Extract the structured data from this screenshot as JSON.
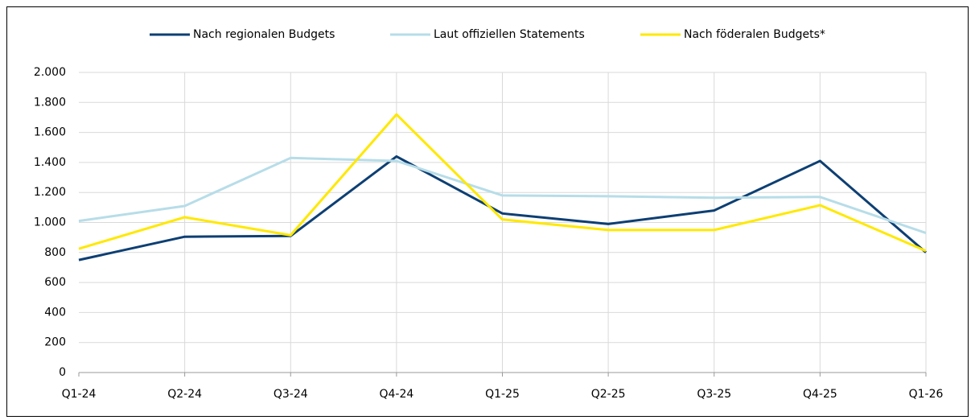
{
  "chart_data": {
    "type": "line",
    "categories": [
      "Q1-24",
      "Q2-24",
      "Q3-24",
      "Q4-24",
      "Q1-25",
      "Q2-25",
      "Q3-25",
      "Q4-25",
      "Q1-26"
    ],
    "series": [
      {
        "name": "Nach regionalen Budgets",
        "color": "#0d3f73",
        "values": [
          750,
          905,
          910,
          1440,
          1060,
          990,
          1080,
          1410,
          800
        ]
      },
      {
        "name": "Laut offiziellen Statements",
        "color": "#b7dde8",
        "values": [
          1010,
          1110,
          1430,
          1410,
          1180,
          1175,
          1165,
          1170,
          930
        ]
      },
      {
        "name": "Nach föderalen Budgets*",
        "color": "#ffe800",
        "values": [
          825,
          1035,
          915,
          1720,
          1020,
          950,
          950,
          1115,
          810
        ]
      }
    ],
    "ylim": [
      0,
      2000
    ],
    "yticks": [
      0,
      200,
      400,
      600,
      800,
      {
        "value": 1000,
        "label": "1.000"
      },
      {
        "value": 1200,
        "label": "1.200"
      },
      {
        "value": 1400,
        "label": "1.400"
      },
      {
        "value": 1600,
        "label": "1.600"
      },
      {
        "value": 1800,
        "label": "1.800"
      },
      {
        "value": 2000,
        "label": "2.000"
      }
    ],
    "grid": true,
    "legend": "top"
  }
}
